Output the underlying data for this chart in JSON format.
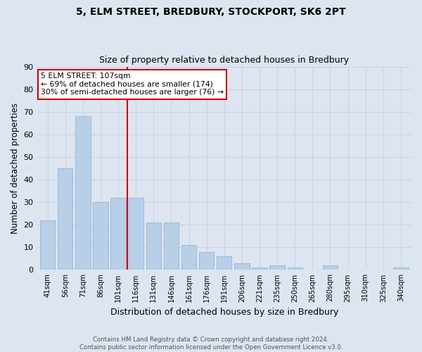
{
  "title": "5, ELM STREET, BREDBURY, STOCKPORT, SK6 2PT",
  "subtitle": "Size of property relative to detached houses in Bredbury",
  "xlabel": "Distribution of detached houses by size in Bredbury",
  "ylabel": "Number of detached properties",
  "categories": [
    "41sqm",
    "56sqm",
    "71sqm",
    "86sqm",
    "101sqm",
    "116sqm",
    "131sqm",
    "146sqm",
    "161sqm",
    "176sqm",
    "191sqm",
    "206sqm",
    "221sqm",
    "235sqm",
    "250sqm",
    "265sqm",
    "280sqm",
    "295sqm",
    "310sqm",
    "325sqm",
    "340sqm"
  ],
  "values": [
    22,
    45,
    68,
    30,
    32,
    32,
    21,
    21,
    11,
    8,
    6,
    3,
    1,
    2,
    1,
    0,
    2,
    0,
    0,
    0,
    1
  ],
  "bar_color": "#b8cfe8",
  "bar_edge_color": "#8aafd0",
  "vline_x": 4.5,
  "vline_color": "#cc0000",
  "annotation_text": "5 ELM STREET: 107sqm\n← 69% of detached houses are smaller (174)\n30% of semi-detached houses are larger (76) →",
  "annotation_box_color": "#ffffff",
  "annotation_box_edge": "#cc0000",
  "ylim": [
    0,
    90
  ],
  "yticks": [
    0,
    10,
    20,
    30,
    40,
    50,
    60,
    70,
    80,
    90
  ],
  "grid_color": "#c8d4e8",
  "bg_color": "#dde5f0",
  "footer": "Contains HM Land Registry data © Crown copyright and database right 2024.\nContains public sector information licensed under the Open Government Licence v3.0."
}
